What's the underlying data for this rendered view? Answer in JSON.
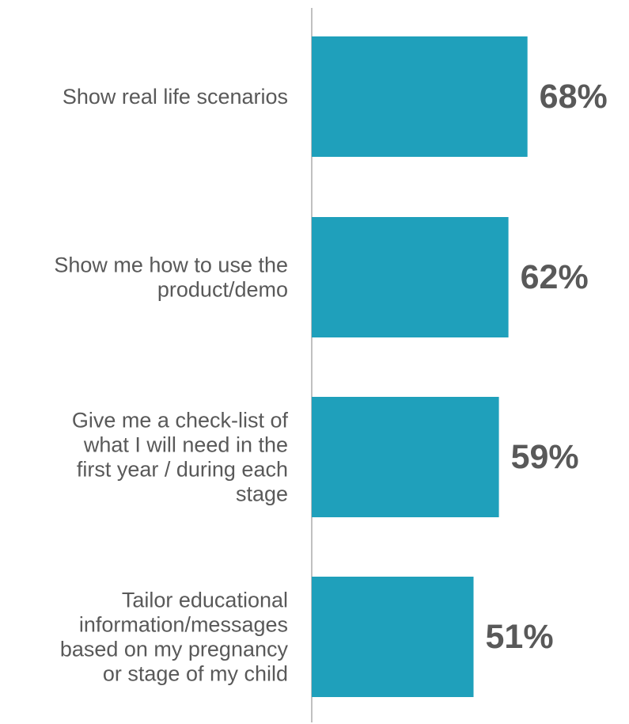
{
  "chart_data": {
    "type": "bar",
    "orientation": "horizontal",
    "categories": [
      [
        "Show real life scenarios"
      ],
      [
        "Show me how to use the",
        "product/demo"
      ],
      [
        "Give me a check-list of",
        "what I will need in the",
        "first year / during each",
        "stage"
      ],
      [
        "Tailor educational",
        "information/messages",
        "based on my pregnancy",
        "or stage of my child"
      ]
    ],
    "values": [
      68,
      62,
      59,
      51
    ],
    "value_labels": [
      "68%",
      "62%",
      "59%",
      "51%"
    ],
    "unit": "%",
    "grid": false,
    "legend": "none",
    "colors": {
      "bar": "#1fa0bb",
      "axis": "#c0c0c0",
      "text": "#595959"
    }
  }
}
